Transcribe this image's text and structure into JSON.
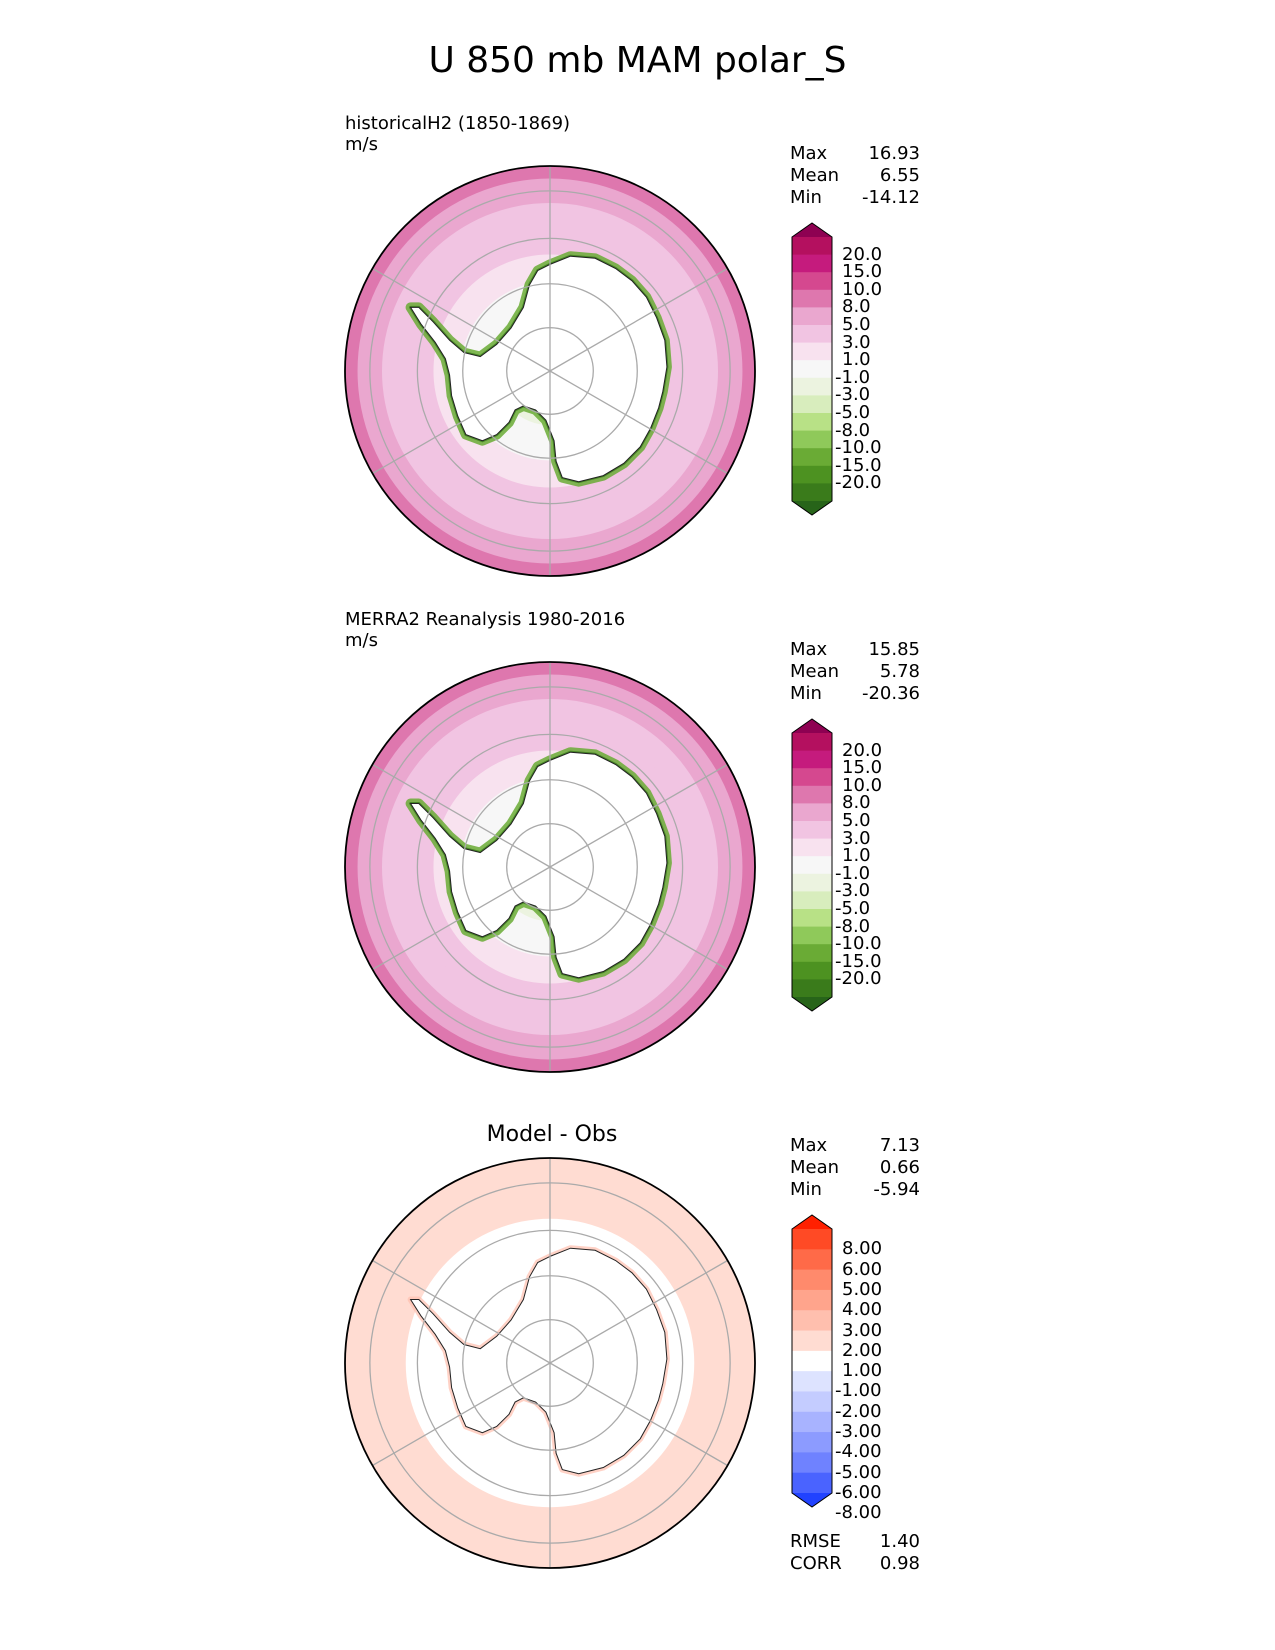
{
  "title": "U 850 mb MAM polar_S",
  "panels": [
    {
      "id": "model",
      "title": "historicalH2 (1850-1869)",
      "units": "m/s",
      "stats": [
        {
          "label": "Max",
          "value": "16.93"
        },
        {
          "label": "Mean",
          "value": "6.55"
        },
        {
          "label": "Min",
          "value": "-14.12"
        }
      ],
      "colorbar": {
        "levels": [
          "20.0",
          "15.0",
          "10.0",
          "8.0",
          "5.0",
          "3.0",
          "1.0",
          "-1.0",
          "-3.0",
          "-5.0",
          "-8.0",
          "-10.0",
          "-15.0",
          "-20.0"
        ],
        "colors": [
          "#8e0152",
          "#b4105f",
          "#c51b7d",
          "#d5488f",
          "#de77ae",
          "#eaa7cf",
          "#f1c4e2",
          "#f8e2ef",
          "#f7f7f7",
          "#ecf3e0",
          "#d8edbd",
          "#b8e186",
          "#8fc95a",
          "#6aab35",
          "#4d9221",
          "#3a7b1b",
          "#276419"
        ]
      },
      "field": {
        "ring_levels": [
          {
            "lat": -80,
            "value": 0
          },
          {
            "lat": -72,
            "value": 1.5
          },
          {
            "lat": -66,
            "value": 4
          },
          {
            "lat": -60,
            "value": 6
          },
          {
            "lat": -55,
            "value": 7.5
          },
          {
            "lat": -50,
            "value": 10
          },
          {
            "lat": -45,
            "value": 12
          }
        ]
      }
    },
    {
      "id": "obs",
      "title": "MERRA2 Reanalysis 1980-2016",
      "units": "m/s",
      "stats": [
        {
          "label": "Max",
          "value": "15.85"
        },
        {
          "label": "Mean",
          "value": "5.78"
        },
        {
          "label": "Min",
          "value": "-20.36"
        }
      ],
      "colorbar": {
        "levels": [
          "20.0",
          "15.0",
          "10.0",
          "8.0",
          "5.0",
          "3.0",
          "1.0",
          "-1.0",
          "-3.0",
          "-5.0",
          "-8.0",
          "-10.0",
          "-15.0",
          "-20.0"
        ],
        "colors": [
          "#8e0152",
          "#b4105f",
          "#c51b7d",
          "#d5488f",
          "#de77ae",
          "#eaa7cf",
          "#f1c4e2",
          "#f8e2ef",
          "#f7f7f7",
          "#ecf3e0",
          "#d8edbd",
          "#b8e186",
          "#8fc95a",
          "#6aab35",
          "#4d9221",
          "#3a7b1b",
          "#276419"
        ]
      },
      "field": {
        "ring_levels": [
          {
            "lat": -80,
            "value": 0
          },
          {
            "lat": -72,
            "value": 1.5
          },
          {
            "lat": -66,
            "value": 3.5
          },
          {
            "lat": -60,
            "value": 5.5
          },
          {
            "lat": -55,
            "value": 7
          },
          {
            "lat": -50,
            "value": 8.5
          },
          {
            "lat": -45,
            "value": 11
          }
        ]
      }
    },
    {
      "id": "diff",
      "title": "Model - Obs",
      "units": "",
      "stats": [
        {
          "label": "Max",
          "value": "7.13"
        },
        {
          "label": "Mean",
          "value": "0.66"
        },
        {
          "label": "Min",
          "value": "-5.94"
        }
      ],
      "metrics": [
        {
          "label": "RMSE",
          "value": "1.40"
        },
        {
          "label": "CORR",
          "value": "0.98"
        }
      ],
      "colorbar": {
        "levels": [
          "8.00",
          "6.00",
          "5.00",
          "4.00",
          "3.00",
          "2.00",
          "1.00",
          "-1.00",
          "-2.00",
          "-3.00",
          "-4.00",
          "-5.00",
          "-6.00",
          "-8.00"
        ],
        "colors": [
          "#ff2000",
          "#ff4a25",
          "#ff6a48",
          "#ff8a6c",
          "#ffa48c",
          "#ffbfae",
          "#ffdcd2",
          "#ffffff",
          "#dde3ff",
          "#c4ccff",
          "#a8b3ff",
          "#8c9bff",
          "#6f82ff",
          "#4a63ff",
          "#2142ff"
        ]
      },
      "field": {
        "ring_levels": [
          {
            "lat": -80,
            "value": 0
          },
          {
            "lat": -60,
            "value": 0
          },
          {
            "lat": -50,
            "value": 1.5
          },
          {
            "lat": -45,
            "value": 1.5
          }
        ]
      }
    }
  ],
  "map": {
    "projection": "south polar stereographic",
    "boundary_lat": -45,
    "parallels": [
      -50,
      -60,
      -70,
      -80
    ],
    "meridians": [
      0,
      60,
      120,
      180,
      240,
      300
    ],
    "land_color": "#ffffff",
    "coast_color": "#222222",
    "grid_color": "#aaaaaa"
  },
  "chart_data": [
    {
      "type": "heatmap",
      "title": "historicalH2 (1850-1869)",
      "units": "m/s",
      "projection": "south polar stereographic",
      "color_levels": [
        -20,
        -15,
        -10,
        -8,
        -5,
        -3,
        -1,
        1,
        3,
        5,
        8,
        10,
        15,
        20
      ],
      "stats": {
        "max": 16.93,
        "mean": 6.55,
        "min": -14.12
      },
      "zonal_profile": [
        {
          "lat": -80,
          "u": 0
        },
        {
          "lat": -72,
          "u": 1.5
        },
        {
          "lat": -66,
          "u": 4
        },
        {
          "lat": -60,
          "u": 6
        },
        {
          "lat": -55,
          "u": 7.5
        },
        {
          "lat": -50,
          "u": 10
        },
        {
          "lat": -45,
          "u": 12
        }
      ]
    },
    {
      "type": "heatmap",
      "title": "MERRA2 Reanalysis 1980-2016",
      "units": "m/s",
      "projection": "south polar stereographic",
      "color_levels": [
        -20,
        -15,
        -10,
        -8,
        -5,
        -3,
        -1,
        1,
        3,
        5,
        8,
        10,
        15,
        20
      ],
      "stats": {
        "max": 15.85,
        "mean": 5.78,
        "min": -20.36
      },
      "zonal_profile": [
        {
          "lat": -80,
          "u": 0
        },
        {
          "lat": -72,
          "u": 1.5
        },
        {
          "lat": -66,
          "u": 3.5
        },
        {
          "lat": -60,
          "u": 5.5
        },
        {
          "lat": -55,
          "u": 7
        },
        {
          "lat": -50,
          "u": 8.5
        },
        {
          "lat": -45,
          "u": 11
        }
      ]
    },
    {
      "type": "heatmap",
      "title": "Model - Obs",
      "units": "m/s",
      "projection": "south polar stereographic",
      "color_levels": [
        -8,
        -6,
        -5,
        -4,
        -3,
        -2,
        -1,
        1,
        2,
        3,
        4,
        5,
        6,
        8
      ],
      "stats": {
        "max": 7.13,
        "mean": 0.66,
        "min": -5.94,
        "rmse": 1.4,
        "corr": 0.98
      },
      "zonal_profile": [
        {
          "lat": -80,
          "u": 0
        },
        {
          "lat": -60,
          "u": 0
        },
        {
          "lat": -50,
          "u": 1.5
        },
        {
          "lat": -45,
          "u": 1.5
        }
      ]
    }
  ]
}
